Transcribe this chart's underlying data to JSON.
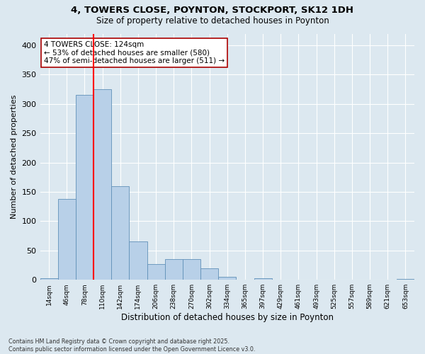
{
  "title_line1": "4, TOWERS CLOSE, POYNTON, STOCKPORT, SK12 1DH",
  "title_line2": "Size of property relative to detached houses in Poynton",
  "xlabel": "Distribution of detached houses by size in Poynton",
  "ylabel": "Number of detached properties",
  "bin_labels": [
    "14sqm",
    "46sqm",
    "78sqm",
    "110sqm",
    "142sqm",
    "174sqm",
    "206sqm",
    "238sqm",
    "270sqm",
    "302sqm",
    "334sqm",
    "365sqm",
    "397sqm",
    "429sqm",
    "461sqm",
    "493sqm",
    "525sqm",
    "557sqm",
    "589sqm",
    "621sqm",
    "653sqm"
  ],
  "bar_heights": [
    3,
    138,
    315,
    325,
    160,
    65,
    27,
    35,
    35,
    20,
    5,
    0,
    3,
    0,
    0,
    0,
    0,
    0,
    0,
    0,
    2
  ],
  "bar_color": "#b8d0e8",
  "bar_edge_color": "#6090b8",
  "red_line_x": 2.5,
  "annotation_text": "4 TOWERS CLOSE: 124sqm\n← 53% of detached houses are smaller (580)\n47% of semi-detached houses are larger (511) →",
  "background_color": "#dce8f0",
  "plot_bg_color": "#dce8f0",
  "grid_color": "#ffffff",
  "footnote": "Contains HM Land Registry data © Crown copyright and database right 2025.\nContains public sector information licensed under the Open Government Licence v3.0.",
  "ylim": [
    0,
    420
  ],
  "yticks": [
    0,
    50,
    100,
    150,
    200,
    250,
    300,
    350,
    400
  ]
}
